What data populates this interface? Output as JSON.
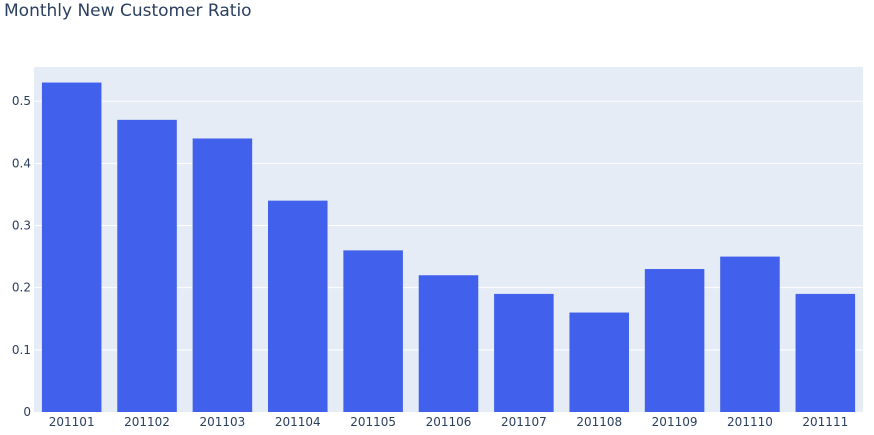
{
  "colors": {
    "plot_background": "#e5ecf6",
    "gridline": "#ffffff",
    "bar": "#4160eb",
    "text": "#2a3f5f"
  },
  "chart_data": {
    "type": "bar",
    "title": "Monthly New Customer Ratio",
    "xlabel": "",
    "ylabel": "",
    "categories": [
      "201101",
      "201102",
      "201103",
      "201104",
      "201105",
      "201106",
      "201107",
      "201108",
      "201109",
      "201110",
      "201111"
    ],
    "values": [
      0.53,
      0.47,
      0.44,
      0.34,
      0.26,
      0.22,
      0.19,
      0.16,
      0.23,
      0.25,
      0.19
    ],
    "ylim": [
      0,
      0.555
    ],
    "yticks": [
      0,
      0.1,
      0.2,
      0.3,
      0.4,
      0.5
    ],
    "ytick_labels": [
      "0",
      "0.1",
      "0.2",
      "0.3",
      "0.4",
      "0.5"
    ],
    "grid": true,
    "legend": "none"
  }
}
